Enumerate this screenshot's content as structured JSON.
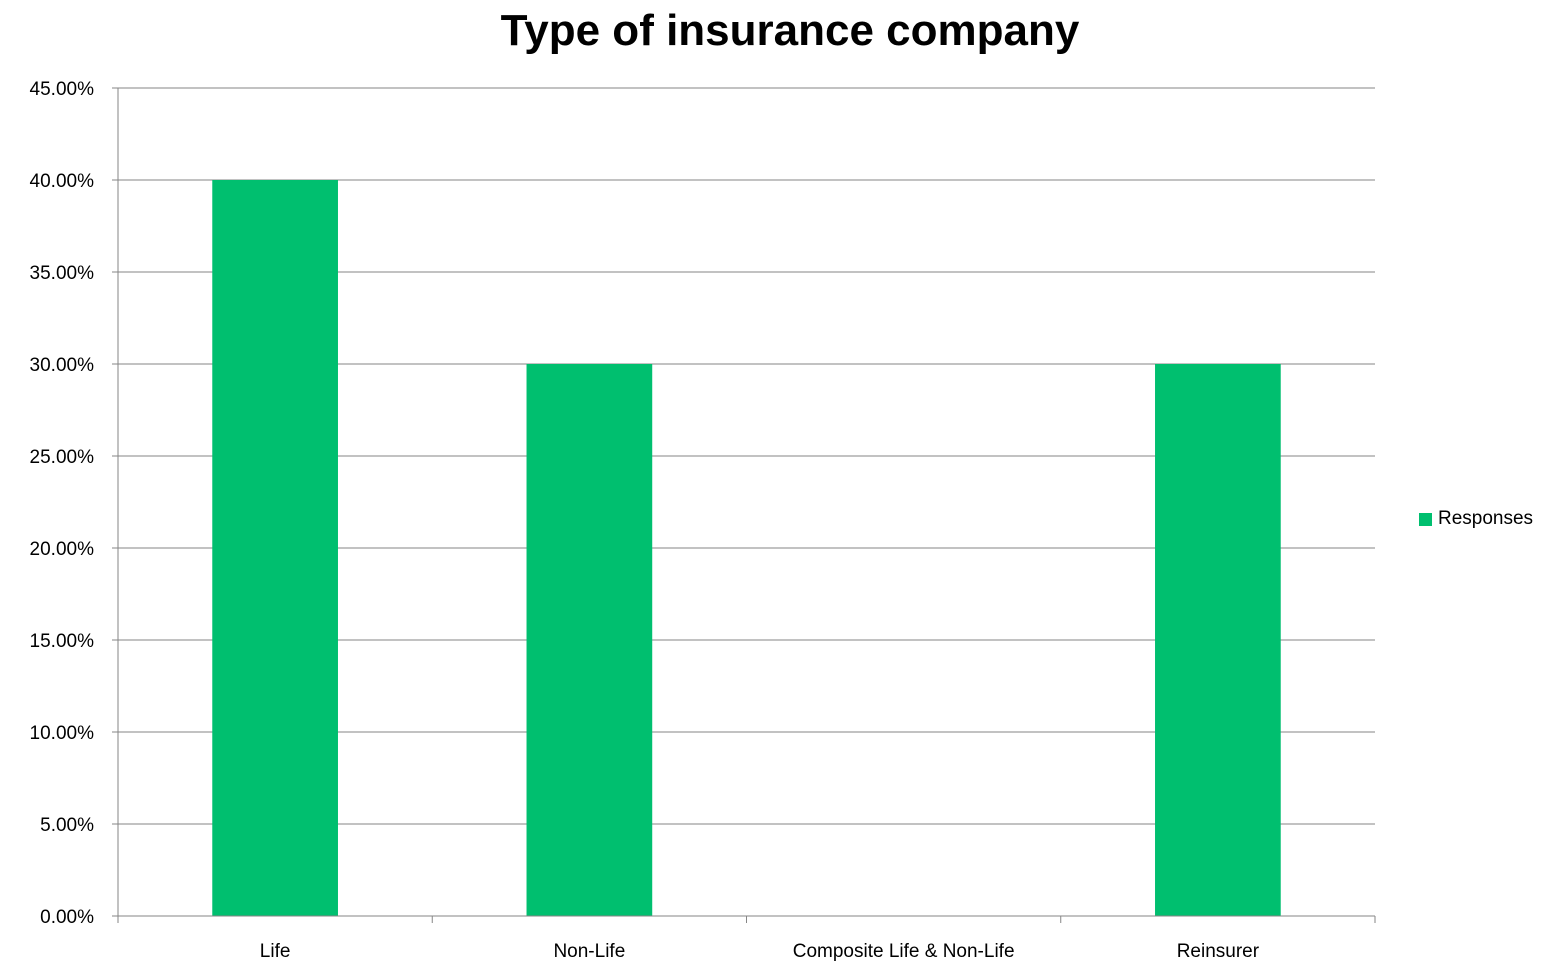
{
  "chart_data": {
    "type": "bar",
    "title": "Type of insurance company",
    "xlabel": "",
    "ylabel": "",
    "categories": [
      "Life",
      "Non-Life",
      "Composite Life & Non-Life",
      "Reinsurer"
    ],
    "series": [
      {
        "name": "Responses",
        "values": [
          0.4,
          0.3,
          0.0,
          0.3
        ],
        "color": "#00BF6F"
      }
    ],
    "ylim": [
      0,
      0.45
    ],
    "yticks": [
      0,
      0.05,
      0.1,
      0.15,
      0.2,
      0.25,
      0.3,
      0.35,
      0.4,
      0.45
    ],
    "ytick_labels": [
      "0.00%",
      "5.00%",
      "10.00%",
      "15.00%",
      "20.00%",
      "25.00%",
      "30.00%",
      "35.00%",
      "40.00%",
      "45.00%"
    ],
    "grid": true,
    "legend_position": "right"
  }
}
